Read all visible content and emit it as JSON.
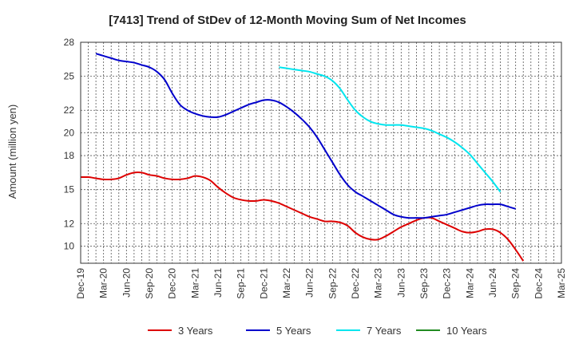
{
  "chart_data": {
    "type": "line",
    "title": "[7413]  Trend of StDev of 12-Month Moving Sum of Net Incomes",
    "ylabel": "Amount (million yen)",
    "xlabel": "",
    "ylim": [
      8.5,
      28
    ],
    "yticks": [
      10,
      12,
      15,
      18,
      20,
      22,
      25,
      28
    ],
    "ytick_labels": [
      "10",
      "12",
      "15",
      "18",
      "20",
      "22",
      "25",
      "28"
    ],
    "grid": true,
    "legend_position": "bottom",
    "x_tick_labels": [
      "Dec-19",
      "Mar-20",
      "Jun-20",
      "Sep-20",
      "Dec-20",
      "Mar-21",
      "Jun-21",
      "Sep-21",
      "Dec-21",
      "Mar-22",
      "Jun-22",
      "Sep-22",
      "Dec-22",
      "Mar-23",
      "Jun-23",
      "Sep-23",
      "Dec-23",
      "Mar-24",
      "Jun-24",
      "Sep-24",
      "Dec-24",
      "Mar-25"
    ],
    "series": [
      {
        "name": "3 Years",
        "color": "#dd0000",
        "start_index": 0,
        "values": [
          16.1,
          16.1,
          16.0,
          15.9,
          15.9,
          16.0,
          16.3,
          16.5,
          16.5,
          16.3,
          16.2,
          16.0,
          15.9,
          15.9,
          16.0,
          16.2,
          16.1,
          15.8,
          15.2,
          14.7,
          14.3,
          14.1,
          14.0,
          14.0,
          14.1,
          14.0,
          13.8,
          13.5,
          13.2,
          12.9,
          12.6,
          12.4,
          12.2,
          12.2,
          12.1,
          11.8,
          11.2,
          10.8,
          10.6,
          10.6,
          10.9,
          11.3,
          11.7,
          12.0,
          12.3,
          12.5,
          12.5,
          12.2,
          11.9,
          11.6,
          11.3,
          11.2,
          11.3,
          11.5,
          11.5,
          11.2,
          10.6,
          9.7,
          8.7
        ]
      },
      {
        "name": "5 Years",
        "color": "#0000cc",
        "start_index": 2,
        "values": [
          27.0,
          26.8,
          26.6,
          26.4,
          26.3,
          26.2,
          26.0,
          25.8,
          25.4,
          24.7,
          23.5,
          22.5,
          22.0,
          21.7,
          21.5,
          21.4,
          21.4,
          21.6,
          21.9,
          22.2,
          22.5,
          22.7,
          22.9,
          22.9,
          22.7,
          22.3,
          21.8,
          21.2,
          20.5,
          19.6,
          18.5,
          17.4,
          16.3,
          15.4,
          14.8,
          14.4,
          14.0,
          13.6,
          13.2,
          12.8,
          12.6,
          12.5,
          12.5,
          12.5,
          12.6,
          12.7,
          12.8,
          13.0,
          13.2,
          13.4,
          13.6,
          13.7,
          13.7,
          13.7,
          13.5,
          13.3
        ]
      },
      {
        "name": "7 Years",
        "color": "#00e5ee",
        "start_index": 26,
        "values": [
          25.8,
          25.7,
          25.6,
          25.5,
          25.4,
          25.2,
          25.0,
          24.6,
          23.9,
          22.9,
          22.0,
          21.4,
          21.0,
          20.8,
          20.7,
          20.7,
          20.7,
          20.6,
          20.5,
          20.4,
          20.2,
          19.9,
          19.6,
          19.2,
          18.7,
          18.1,
          17.3,
          16.5,
          15.7,
          14.8
        ]
      },
      {
        "name": "10 Years",
        "color": "#228b22",
        "start_index": 0,
        "values": []
      }
    ]
  }
}
